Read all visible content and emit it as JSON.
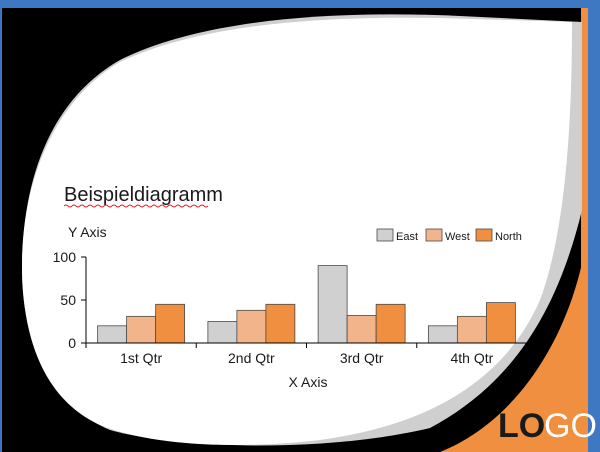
{
  "slide": {
    "logo": {
      "bold_part": "LO",
      "light_part": "GO"
    },
    "colors": {
      "background_blue": "#3f78c2",
      "frame_black": "#000000",
      "accent_orange": "#ef8f3f",
      "shadow_gray": "#cfcfcf",
      "slide_white": "#ffffff"
    }
  },
  "chart_data": {
    "type": "bar",
    "title": "Beispieldiagramm",
    "xlabel": "X Axis",
    "ylabel": "Y Axis",
    "categories": [
      "1st Qtr",
      "2nd Qtr",
      "3rd Qtr",
      "4th Qtr"
    ],
    "series": [
      {
        "name": "East",
        "color": "#d0d0d0",
        "values": [
          20,
          25,
          90,
          20
        ]
      },
      {
        "name": "West",
        "color": "#f2b48a",
        "values": [
          31,
          38,
          32,
          31
        ]
      },
      {
        "name": "North",
        "color": "#ef8f3f",
        "values": [
          45,
          45,
          45,
          47
        ]
      }
    ],
    "yticks": [
      "0",
      "50",
      "100"
    ],
    "ylim": [
      0,
      100
    ],
    "grid": false,
    "legend": "top-right"
  }
}
